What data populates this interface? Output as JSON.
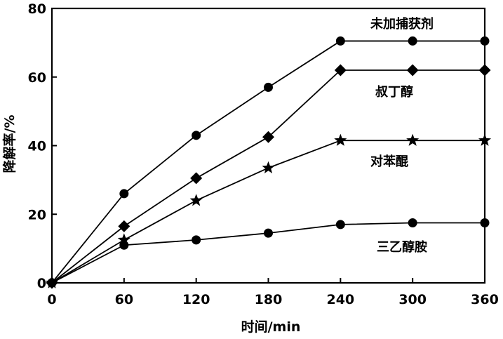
{
  "chart_data": {
    "type": "line",
    "title": "",
    "xlabel": "时间/min",
    "ylabel": "降解率/%",
    "x": [
      0,
      60,
      120,
      180,
      240,
      300,
      360
    ],
    "xlim": [
      0,
      360
    ],
    "ylim": [
      0,
      80
    ],
    "xticks": [
      0,
      60,
      120,
      180,
      240,
      300,
      360
    ],
    "yticks": [
      0,
      20,
      40,
      60,
      80
    ],
    "grid": false,
    "legend": "inline labels",
    "series": [
      {
        "name": "未加捕获剂",
        "marker": "circle",
        "values": [
          0,
          26,
          43,
          57,
          70.5,
          70.5,
          70.5
        ]
      },
      {
        "name": "叔丁醇",
        "marker": "diamond",
        "values": [
          0,
          16.5,
          30.5,
          42.5,
          62,
          62,
          62
        ]
      },
      {
        "name": "对苯醌",
        "marker": "star",
        "values": [
          0,
          12.5,
          24,
          33.5,
          41.5,
          41.5,
          41.5
        ]
      },
      {
        "name": "三乙醇胺",
        "marker": "circle",
        "values": [
          0,
          11,
          12.5,
          14.5,
          17,
          17.5,
          17.5
        ]
      }
    ],
    "colors": {
      "line": "#000000",
      "marker": "#000000",
      "background": "#ffffff"
    }
  }
}
